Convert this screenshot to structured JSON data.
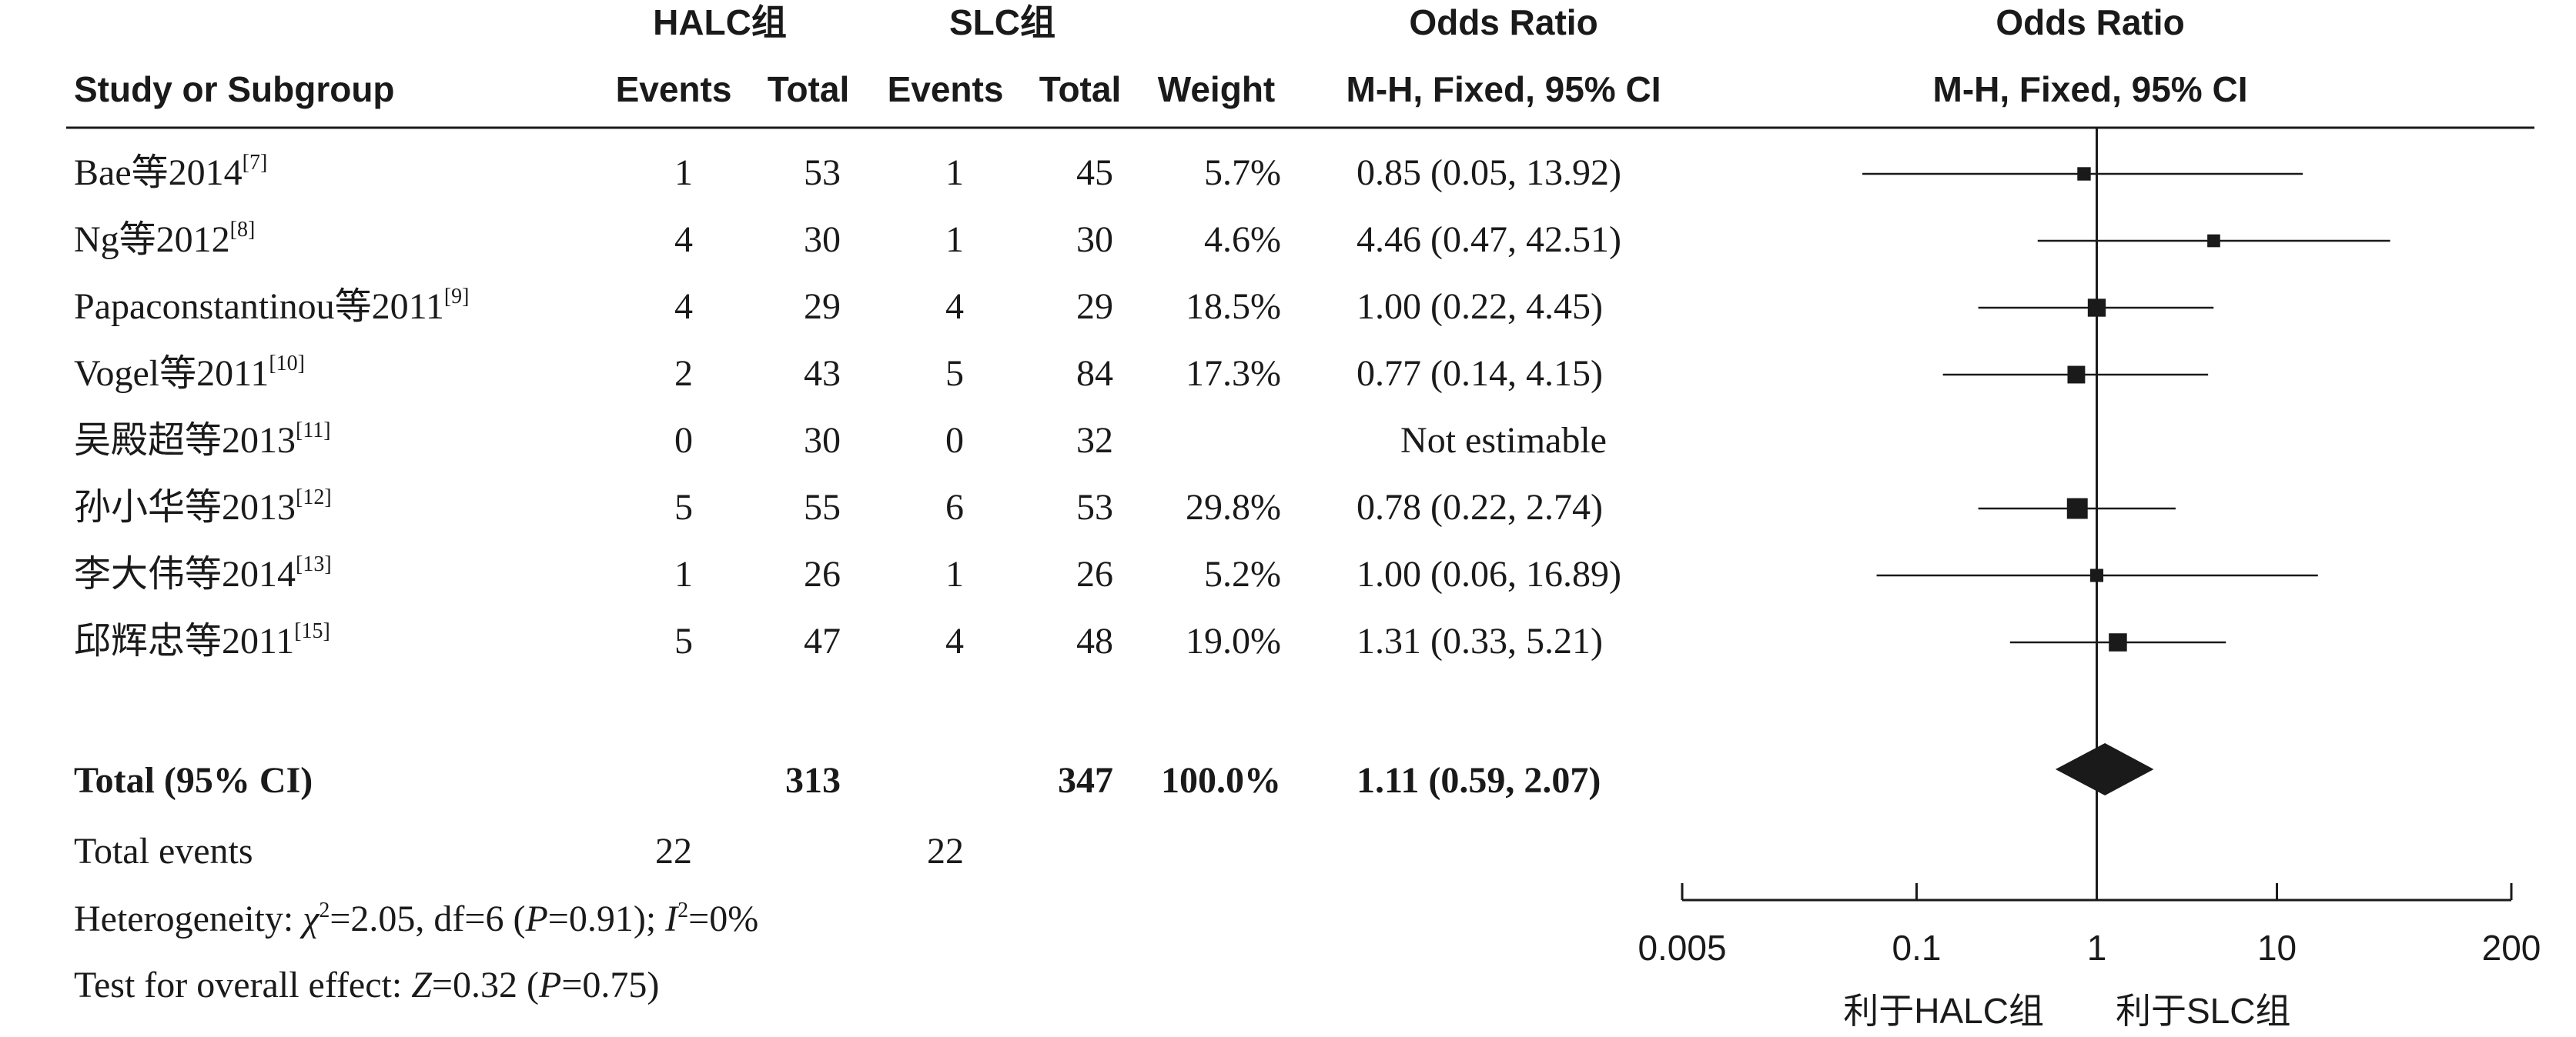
{
  "headers": {
    "group1": "HALC组",
    "group2": "SLC组",
    "study": "Study or Subgroup",
    "events": "Events",
    "total": "Total",
    "weight": "Weight",
    "or_title": "Odds Ratio",
    "or_method": "M-H, Fixed, 95% CI",
    "plot_title": "Odds Ratio",
    "plot_method": "M-H, Fixed, 95% CI"
  },
  "studies": [
    {
      "name": "Bae等2014",
      "ref": "[7]",
      "e1": "1",
      "n1": "53",
      "e2": "1",
      "n2": "45",
      "weight": "5.7%",
      "ci": "0.85 (0.05, 13.92)"
    },
    {
      "name": "Ng等2012",
      "ref": "[8]",
      "e1": "4",
      "n1": "30",
      "e2": "1",
      "n2": "30",
      "weight": "4.6%",
      "ci": "4.46 (0.47, 42.51)"
    },
    {
      "name": "Papaconstantinou等2011",
      "ref": "[9]",
      "e1": "4",
      "n1": "29",
      "e2": "4",
      "n2": "29",
      "weight": "18.5%",
      "ci": "1.00 (0.22, 4.45)"
    },
    {
      "name": "Vogel等2011",
      "ref": "[10]",
      "e1": "2",
      "n1": "43",
      "e2": "5",
      "n2": "84",
      "weight": "17.3%",
      "ci": "0.77 (0.14, 4.15)"
    },
    {
      "name": "吴殿超等2013",
      "ref": "[11]",
      "e1": "0",
      "n1": "30",
      "e2": "0",
      "n2": "32",
      "weight": "",
      "ci": "Not estimable"
    },
    {
      "name": "孙小华等2013",
      "ref": "[12]",
      "e1": "5",
      "n1": "55",
      "e2": "6",
      "n2": "53",
      "weight": "29.8%",
      "ci": "0.78 (0.22, 2.74)"
    },
    {
      "name": "李大伟等2014",
      "ref": "[13]",
      "e1": "1",
      "n1": "26",
      "e2": "1",
      "n2": "26",
      "weight": "5.2%",
      "ci": "1.00 (0.06, 16.89)"
    },
    {
      "name": "邱辉忠等2011",
      "ref": "[15]",
      "e1": "5",
      "n1": "47",
      "e2": "4",
      "n2": "48",
      "weight": "19.0%",
      "ci": "1.31 (0.33, 5.21)"
    }
  ],
  "total": {
    "label": "Total (95% CI)",
    "n1": "313",
    "n2": "347",
    "weight": "100.0%",
    "ci": "1.11 (0.59, 2.07)"
  },
  "total_events": {
    "label": "Total events",
    "e1": "22",
    "e2": "22"
  },
  "heterogeneity": {
    "prefix": "Heterogeneity: ",
    "chi": "χ",
    "chi_val": "=2.05, df=6 (",
    "p": "P",
    "p_val": "=0.91); ",
    "i": "I",
    "i_val": "=0%"
  },
  "overall": {
    "prefix": "Test for overall effect: ",
    "z": "Z",
    "z_val": "=0.32 (",
    "p": "P",
    "p_val": "=0.75)"
  },
  "favours": {
    "left": "利于HALC组",
    "right": "利于SLC组"
  },
  "chart_data": {
    "type": "forest",
    "x_scale": "log",
    "x_ticks": [
      0.005,
      0.1,
      1,
      10,
      200
    ],
    "x_tick_labels": [
      "0.005",
      "0.1",
      "1",
      "10",
      "200"
    ],
    "xlim": [
      0.005,
      200
    ],
    "null_line": 1,
    "points": [
      {
        "or": 0.85,
        "lo": 0.05,
        "hi": 13.92,
        "weight": 5.7
      },
      {
        "or": 4.46,
        "lo": 0.47,
        "hi": 42.51,
        "weight": 4.6
      },
      {
        "or": 1.0,
        "lo": 0.22,
        "hi": 4.45,
        "weight": 18.5
      },
      {
        "or": 0.77,
        "lo": 0.14,
        "hi": 4.15,
        "weight": 17.3
      },
      null,
      {
        "or": 0.78,
        "lo": 0.22,
        "hi": 2.74,
        "weight": 29.8
      },
      {
        "or": 1.0,
        "lo": 0.06,
        "hi": 16.89,
        "weight": 5.2
      },
      {
        "or": 1.31,
        "lo": 0.33,
        "hi": 5.21,
        "weight": 19.0
      }
    ],
    "total": {
      "or": 1.11,
      "lo": 0.59,
      "hi": 2.07
    }
  }
}
